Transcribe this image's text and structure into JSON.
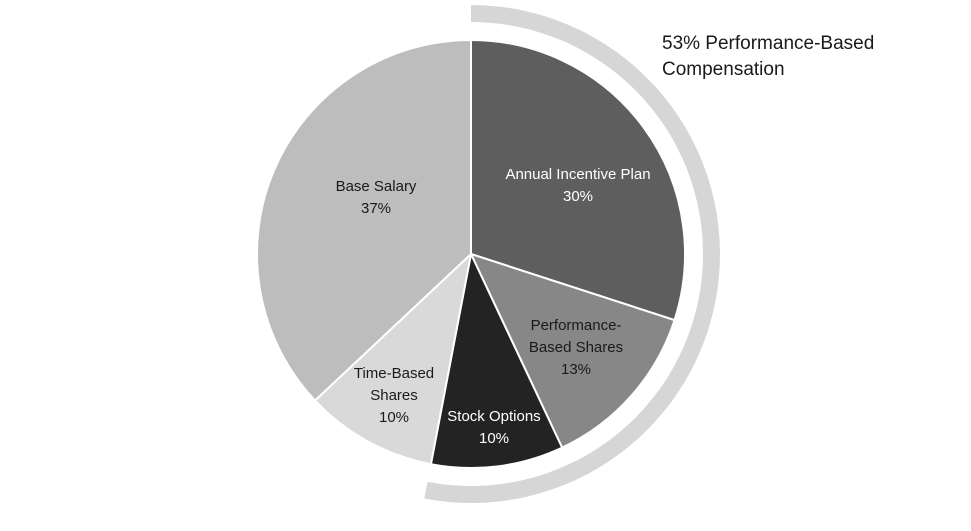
{
  "chart_data": {
    "type": "pie",
    "slices": [
      {
        "label_lines": [
          "Annual Incentive Plan"
        ],
        "percent_label": "30%",
        "value": 30,
        "color": "#5e5e5e",
        "text_color": "#ffffff",
        "performance_based": true
      },
      {
        "label_lines": [
          "Performance-",
          "Based Shares"
        ],
        "percent_label": "13%",
        "value": 13,
        "color": "#878787",
        "text_color": "#1a1a1a",
        "performance_based": true
      },
      {
        "label_lines": [
          "Stock Options"
        ],
        "percent_label": "10%",
        "value": 10,
        "color": "#232323",
        "text_color": "#ffffff",
        "performance_based": true
      },
      {
        "label_lines": [
          "Time-Based",
          "Shares"
        ],
        "percent_label": "10%",
        "value": 10,
        "color": "#d9d9d9",
        "text_color": "#1a1a1a",
        "performance_based": false
      },
      {
        "label_lines": [
          "Base Salary"
        ],
        "percent_label": "37%",
        "value": 37,
        "color": "#bdbdbd",
        "text_color": "#1a1a1a",
        "performance_based": false
      }
    ],
    "start_angle_degrees": 0,
    "direction": "clockwise",
    "outer_ring": {
      "value": 53,
      "color": "#d6d6d6",
      "label_lines": [
        "53% Performance-Based",
        "Compensation"
      ]
    }
  }
}
